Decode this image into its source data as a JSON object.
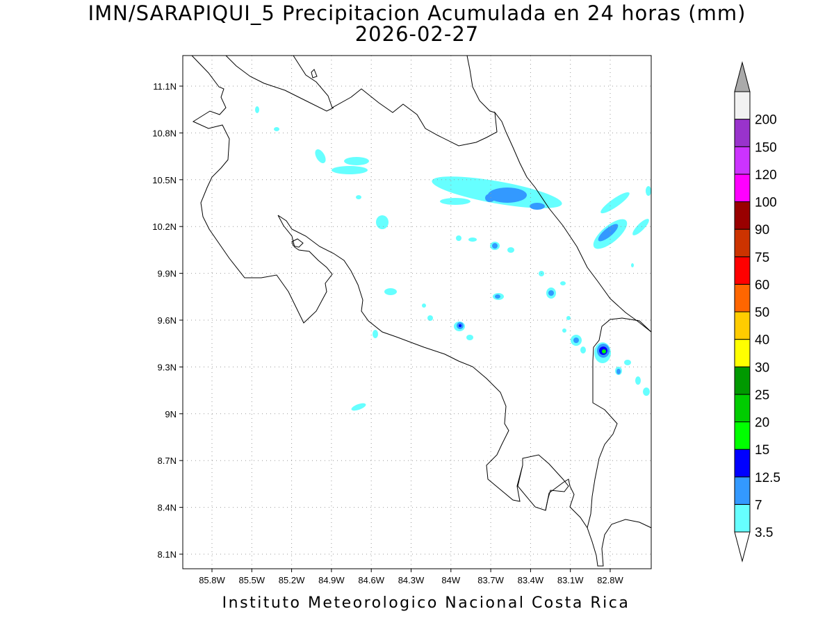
{
  "map": {
    "title": "IMN/SARAPIQUI_5 Precipitacion Acumulada en 24 horas (mm)",
    "date": "2026-02-27",
    "footer": "Instituto Meteorologico Nacional Costa Rica",
    "lat_labels": [
      "11.1N",
      "10.8N",
      "10.5N",
      "10.2N",
      "9.9N",
      "9.6N",
      "9.3N",
      "9N",
      "8.7N",
      "8.4N",
      "8.1N"
    ],
    "lon_labels": [
      "85.8W",
      "85.5W",
      "85.2W",
      "84.9W",
      "84.6W",
      "84.3W",
      "84W",
      "83.7W",
      "83.4W",
      "83.1W",
      "82.8W"
    ]
  },
  "colorbar": {
    "bins": [
      {
        "label": "3.5",
        "color": "#66ffff"
      },
      {
        "label": "7",
        "color": "#3399ff"
      },
      {
        "label": "12.5",
        "color": "#0000ff"
      },
      {
        "label": "15",
        "color": "#00ff00"
      },
      {
        "label": "20",
        "color": "#00cc00"
      },
      {
        "label": "25",
        "color": "#009900"
      },
      {
        "label": "30",
        "color": "#ffff00"
      },
      {
        "label": "40",
        "color": "#ffcc00"
      },
      {
        "label": "50",
        "color": "#ff6600"
      },
      {
        "label": "60",
        "color": "#ff0000"
      },
      {
        "label": "75",
        "color": "#cc3300"
      },
      {
        "label": "90",
        "color": "#990000"
      },
      {
        "label": "100",
        "color": "#ff00ff"
      },
      {
        "label": "120",
        "color": "#cc33ff"
      },
      {
        "label": "150",
        "color": "#9933cc"
      },
      {
        "label": "200",
        "color": "#f2f2f2"
      }
    ],
    "top_arrow_color": "#aaaaaa",
    "bottom_arrow_color": "#ffffff"
  }
}
